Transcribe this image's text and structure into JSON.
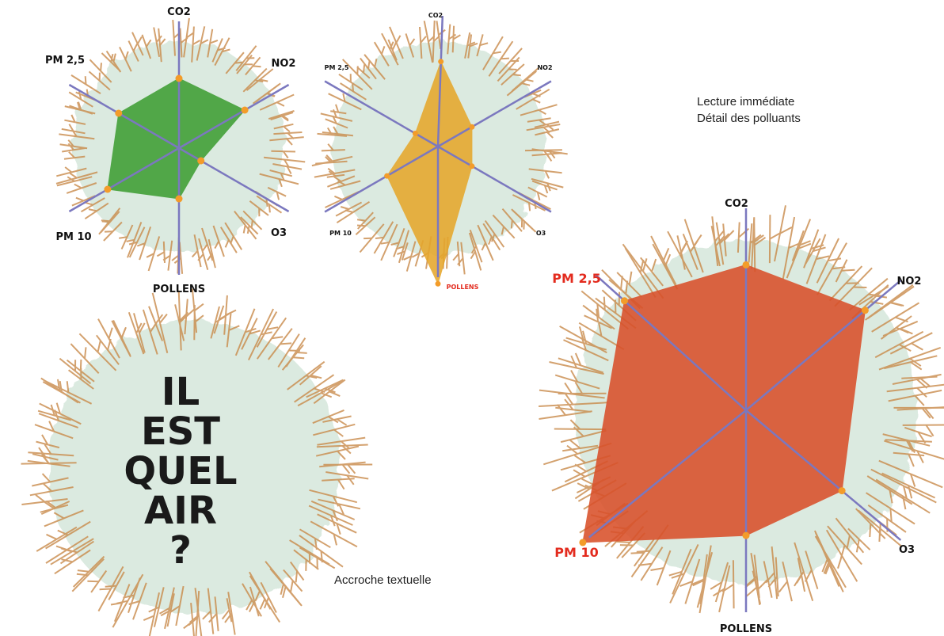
{
  "annotations": {
    "reading_line1": "Lecture immédiate",
    "reading_line2": "Détail des polluants",
    "hook_caption": "Accroche textuelle"
  },
  "slogan": {
    "lines": [
      "IL",
      "EST",
      "QUEL",
      "AIR",
      "?"
    ]
  },
  "colors": {
    "axis": "#7b78bf",
    "marker": "#f39c2a",
    "highlight_label": "#e32b1e",
    "label": "#111111",
    "halo_fill": "#cfe3d6",
    "branch": "#c98a4a"
  },
  "chart_data": [
    {
      "type": "radar",
      "axes": [
        "CO2",
        "NO2",
        "O3",
        "POLLENS",
        "PM 10",
        "PM 2,5"
      ],
      "values": [
        0.55,
        0.6,
        0.2,
        0.4,
        0.65,
        0.55
      ],
      "fill": "#3f9e34",
      "highlight_axes": [],
      "label_size": "medium"
    },
    {
      "type": "radar",
      "axes": [
        "CO2",
        "NO2",
        "O3",
        "POLLENS",
        "PM 10",
        "PM 2,5"
      ],
      "values": [
        0.65,
        0.3,
        0.3,
        1.05,
        0.45,
        0.2
      ],
      "fill": "#e6a72c",
      "highlight_axes": [
        "POLLENS"
      ],
      "label_size": "small"
    },
    {
      "type": "radar",
      "axes": [
        "CO2",
        "NO2",
        "O3",
        "POLLENS",
        "PM 10",
        "PM 2,5"
      ],
      "values": [
        0.72,
        0.77,
        0.62,
        0.62,
        1.04,
        0.81
      ],
      "fill": "#d9502a",
      "highlight_axes": [
        "PM 10",
        "PM 2,5"
      ],
      "label_size": "large"
    }
  ]
}
